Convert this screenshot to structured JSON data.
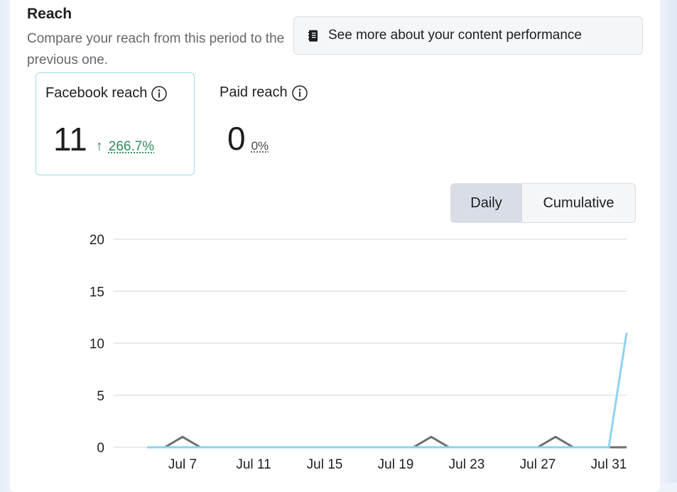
{
  "section": {
    "title": "Reach",
    "subtitle": "Compare your reach from this period to the previous one."
  },
  "performance_button": {
    "label": "See more about your content performance",
    "icon": "notebook-icon"
  },
  "metrics": [
    {
      "title": "Facebook reach",
      "value": "11",
      "change": "266.7%",
      "trend": "up",
      "trend_icon": "arrow-up-icon",
      "selected": true
    },
    {
      "title": "Paid reach",
      "value": "0",
      "change": "0%",
      "trend": "neutral",
      "selected": false
    }
  ],
  "view_toggle": {
    "options": [
      "Daily",
      "Cumulative"
    ],
    "selected": "Daily"
  },
  "colors": {
    "selected_card_border": "#9fd9e6",
    "increase_text": "#2f8a5b",
    "current_series": "#8dd3f0",
    "previous_series": "#6b6f72",
    "toggle_selected_bg": "#d8dde6",
    "toggle_unselected_bg": "#f5f6f7"
  },
  "chart_data": {
    "type": "line",
    "x_ticks": [
      "Jul 7",
      "Jul 11",
      "Jul 15",
      "Jul 19",
      "Jul 23",
      "Jul 27",
      "Jul 31"
    ],
    "x": [
      "Jul 5",
      "Jul 6",
      "Jul 7",
      "Jul 8",
      "Jul 9",
      "Jul 10",
      "Jul 11",
      "Jul 12",
      "Jul 13",
      "Jul 14",
      "Jul 15",
      "Jul 16",
      "Jul 17",
      "Jul 18",
      "Jul 19",
      "Jul 20",
      "Jul 21",
      "Jul 22",
      "Jul 23",
      "Jul 24",
      "Jul 25",
      "Jul 26",
      "Jul 27",
      "Jul 28",
      "Jul 29",
      "Jul 30",
      "Jul 31",
      "Aug 1"
    ],
    "yticks": [
      0,
      5,
      10,
      15,
      20
    ],
    "ylim": [
      0,
      20
    ],
    "grid": true,
    "series": [
      {
        "role": "previous",
        "color": "#6b6f72",
        "values": [
          0,
          0,
          1,
          0,
          0,
          0,
          0,
          0,
          0,
          0,
          0,
          0,
          0,
          0,
          0,
          0,
          1,
          0,
          0,
          0,
          0,
          0,
          0,
          1,
          0,
          0,
          0,
          0
        ]
      },
      {
        "role": "current",
        "color": "#8dd3f0",
        "values": [
          0,
          0,
          0,
          0,
          0,
          0,
          0,
          0,
          0,
          0,
          0,
          0,
          0,
          0,
          0,
          0,
          0,
          0,
          0,
          0,
          0,
          0,
          0,
          0,
          0,
          0,
          0,
          11
        ]
      }
    ]
  }
}
